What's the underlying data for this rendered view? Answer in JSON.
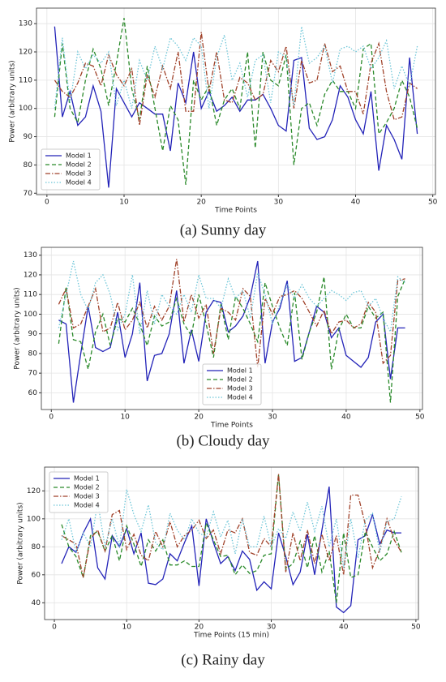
{
  "chart_data": [
    {
      "type": "line",
      "caption": "(a) Sunny day",
      "x_label": "Time Points",
      "y_label": "Power (arbitrary units)",
      "grid": true,
      "legend_loc": "lower left",
      "xlim": [
        -1.35,
        50.35
      ],
      "xticks": [
        0,
        10,
        20,
        30,
        40,
        50
      ],
      "ylim": [
        69.5,
        135.5
      ],
      "yticks": [
        70,
        80,
        90,
        100,
        110,
        120,
        130
      ],
      "x": [
        1,
        2,
        3,
        4,
        5,
        6,
        7,
        8,
        9,
        10,
        11,
        12,
        13,
        14,
        15,
        16,
        17,
        18,
        19,
        20,
        21,
        22,
        23,
        24,
        25,
        26,
        27,
        28,
        29,
        30,
        31,
        32,
        33,
        34,
        35,
        36,
        37,
        38,
        39,
        40,
        41,
        42,
        43,
        44,
        45,
        46,
        47,
        48
      ],
      "series": [
        {
          "name": "Model 1",
          "color": "#2323b8",
          "linestyle": "solid",
          "values": [
            129,
            97,
            106,
            94,
            97,
            108,
            99,
            72,
            107,
            102,
            97,
            102,
            100,
            98,
            98,
            85,
            109,
            102,
            120,
            100,
            106,
            99,
            101,
            104,
            99,
            103,
            103,
            105,
            100,
            94,
            92,
            117,
            118,
            93,
            89,
            90,
            96,
            108,
            104,
            96,
            91,
            106,
            78,
            94,
            89,
            82,
            118,
            91
          ]
        },
        {
          "name": "Model 2",
          "color": "#2a8a2a",
          "linestyle": "dashed",
          "values": [
            97,
            123,
            100,
            95,
            110,
            121,
            114,
            101,
            116,
            132,
            107,
            96,
            115,
            100,
            85,
            101,
            96,
            73,
            110,
            103,
            108,
            94,
            103,
            107,
            100,
            120,
            86,
            120,
            110,
            108,
            119,
            80,
            100,
            102,
            94,
            105,
            110,
            106,
            106,
            100,
            121,
            123,
            91,
            95,
            100,
            110,
            104,
            93
          ]
        },
        {
          "name": "Model 3",
          "color": "#a0422a",
          "linestyle": "dashdot",
          "values": [
            110,
            106,
            104,
            109,
            116,
            115,
            108,
            119,
            112,
            108,
            114,
            94,
            112,
            104,
            115,
            107,
            120,
            99,
            99,
            127,
            106,
            120,
            103,
            102,
            111,
            109,
            103,
            105,
            117,
            113,
            122,
            100,
            117,
            109,
            110,
            123,
            113,
            115,
            106,
            106,
            98,
            116,
            123,
            106,
            96,
            97,
            109,
            107
          ]
        },
        {
          "name": "Model 4",
          "color": "#6ec6d8",
          "linestyle": "dotted",
          "values": [
            100,
            125,
            102,
            120,
            114,
            119,
            116,
            120,
            101,
            110,
            100,
            117,
            110,
            122,
            114,
            125,
            122,
            117,
            125,
            122,
            100,
            118,
            126,
            110,
            116,
            104,
            117,
            119,
            102,
            120,
            118,
            101,
            129,
            116,
            118,
            122,
            109,
            121,
            122,
            120,
            122,
            114,
            118,
            124,
            107,
            115,
            108,
            122
          ]
        }
      ]
    },
    {
      "type": "line",
      "caption": "(b) Cloudy day",
      "x_label": "Time Points",
      "y_label": "Power (arbitrary units)",
      "grid": true,
      "legend_loc": "lower center",
      "xlim": [
        -1.35,
        50.35
      ],
      "xticks": [
        0,
        10,
        20,
        30,
        40,
        50
      ],
      "ylim": [
        51.5,
        134
      ],
      "yticks": [
        60,
        70,
        80,
        90,
        100,
        110,
        120,
        130
      ],
      "x": [
        1,
        2,
        3,
        4,
        5,
        6,
        7,
        8,
        9,
        10,
        11,
        12,
        13,
        14,
        15,
        16,
        17,
        18,
        19,
        20,
        21,
        22,
        23,
        24,
        25,
        26,
        27,
        28,
        29,
        30,
        31,
        32,
        33,
        34,
        35,
        36,
        37,
        38,
        39,
        40,
        41,
        42,
        43,
        44,
        45,
        46,
        47,
        48
      ],
      "series": [
        {
          "name": "Model 1",
          "color": "#2323b8",
          "linestyle": "solid",
          "values": [
            97,
            95,
            55,
            80,
            104,
            83,
            81,
            83,
            101,
            78,
            90,
            116,
            66,
            79,
            80,
            90,
            112,
            75,
            92,
            76,
            101,
            107,
            106,
            91,
            94,
            99,
            109,
            127,
            75,
            96,
            103,
            117,
            76,
            78,
            91,
            104,
            101,
            88,
            93,
            79,
            76,
            73,
            78,
            96,
            100,
            67,
            93,
            93
          ]
        },
        {
          "name": "Model 2",
          "color": "#2a8a2a",
          "linestyle": "dashed",
          "values": [
            85,
            114,
            87,
            86,
            72,
            91,
            100,
            84,
            98,
            96,
            103,
            95,
            84,
            99,
            94,
            96,
            108,
            95,
            89,
            110,
            95,
            78,
            105,
            87,
            109,
            103,
            95,
            86,
            116,
            104,
            93,
            84,
            111,
            77,
            91,
            101,
            119,
            72,
            92,
            100,
            93,
            93,
            104,
            98,
            101,
            55,
            109,
            118
          ]
        },
        {
          "name": "Model 3",
          "color": "#a0422a",
          "linestyle": "dashdot",
          "values": [
            105,
            113,
            93,
            95,
            104,
            113,
            91,
            93,
            106,
            92,
            97,
            106,
            93,
            104,
            97,
            104,
            128,
            96,
            110,
            98,
            105,
            80,
            103,
            101,
            97,
            113,
            109,
            73,
            108,
            100,
            109,
            110,
            112,
            108,
            101,
            94,
            102,
            90,
            96,
            97,
            93,
            95,
            106,
            101,
            75,
            79,
            117,
            118
          ]
        },
        {
          "name": "Model 4",
          "color": "#6ec6d8",
          "linestyle": "dotted",
          "values": [
            93,
            110,
            127,
            110,
            102,
            116,
            120,
            110,
            92,
            100,
            120,
            90,
            112,
            95,
            110,
            104,
            100,
            110,
            101,
            120,
            108,
            108,
            103,
            118,
            108,
            112,
            98,
            121,
            110,
            95,
            105,
            115,
            108,
            115,
            108,
            104,
            108,
            112,
            110,
            107,
            111,
            112,
            104,
            108,
            98,
            91,
            119,
            116
          ]
        }
      ]
    },
    {
      "type": "line",
      "caption": "(c) Rainy day",
      "x_label": "Time Points (15 min)",
      "y_label": "Power (arbitrary units)",
      "grid": true,
      "legend_loc": "upper left",
      "xlim": [
        -1.35,
        50.35
      ],
      "xticks": [
        0,
        10,
        20,
        30,
        40,
        50
      ],
      "ylim": [
        28,
        137
      ],
      "yticks": [
        40,
        60,
        80,
        100,
        120
      ],
      "x": [
        1,
        2,
        3,
        4,
        5,
        6,
        7,
        8,
        9,
        10,
        11,
        12,
        13,
        14,
        15,
        16,
        17,
        18,
        19,
        20,
        21,
        22,
        23,
        24,
        25,
        26,
        27,
        28,
        29,
        30,
        31,
        32,
        33,
        34,
        35,
        36,
        37,
        38,
        39,
        40,
        41,
        42,
        43,
        44,
        45,
        46,
        47,
        48
      ],
      "series": [
        {
          "name": "Model 1",
          "color": "#2323b8",
          "linestyle": "solid",
          "values": [
            68,
            80,
            76,
            90,
            100,
            65,
            57,
            88,
            80,
            93,
            75,
            90,
            54,
            53,
            57,
            75,
            70,
            83,
            95,
            52,
            100,
            83,
            68,
            73,
            63,
            77,
            71,
            49,
            55,
            50,
            90,
            73,
            53,
            62,
            89,
            60,
            92,
            123,
            37,
            33,
            38,
            85,
            88,
            103,
            82,
            92,
            90,
            90
          ]
        },
        {
          "name": "Model 2",
          "color": "#2a8a2a",
          "linestyle": "dashed",
          "values": [
            96,
            80,
            73,
            58,
            88,
            91,
            77,
            88,
            70,
            95,
            82,
            66,
            85,
            77,
            85,
            67,
            67,
            70,
            66,
            66,
            97,
            85,
            73,
            74,
            60,
            67,
            61,
            63,
            74,
            75,
            132,
            64,
            68,
            84,
            65,
            88,
            62,
            77,
            40,
            90,
            58,
            60,
            91,
            80,
            70,
            75,
            91,
            76
          ]
        },
        {
          "name": "Model 3",
          "color": "#a0422a",
          "linestyle": "dashdot",
          "values": [
            88,
            85,
            82,
            58,
            86,
            92,
            77,
            103,
            106,
            78,
            89,
            74,
            70,
            91,
            80,
            98,
            80,
            88,
            92,
            99,
            86,
            92,
            75,
            92,
            90,
            100,
            76,
            74,
            86,
            80,
            132,
            62,
            90,
            70,
            92,
            68,
            89,
            70,
            88,
            60,
            117,
            117,
            96,
            65,
            78,
            100,
            85,
            76
          ]
        },
        {
          "name": "Model 4",
          "color": "#6ec6d8",
          "linestyle": "dotted",
          "values": [
            85,
            100,
            76,
            90,
            80,
            112,
            80,
            100,
            80,
            121,
            103,
            91,
            110,
            83,
            78,
            104,
            92,
            85,
            100,
            90,
            87,
            105,
            87,
            99,
            75,
            100,
            80,
            80,
            102,
            80,
            93,
            86,
            105,
            91,
            112,
            91,
            109,
            80,
            100,
            65,
            100,
            72,
            99,
            104,
            76,
            98,
            100,
            116
          ]
        }
      ]
    }
  ]
}
